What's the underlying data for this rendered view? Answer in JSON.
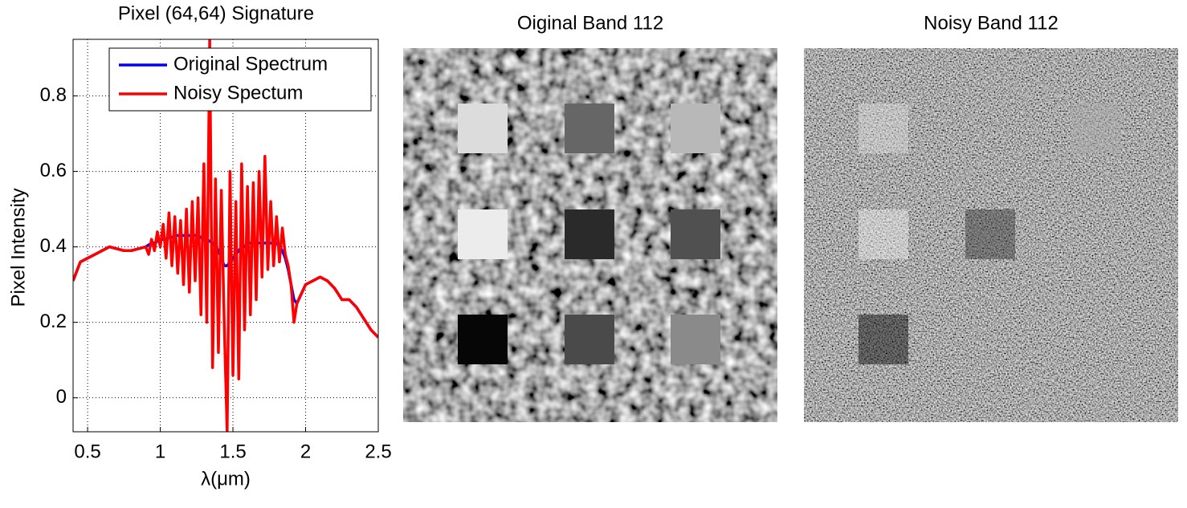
{
  "chart_data": [
    {
      "type": "line",
      "title": "Pixel (64,64) Signature",
      "xlabel": "λ(μm)",
      "ylabel": "Pixel Intensity",
      "x": [
        0.4,
        0.45,
        0.5,
        0.55,
        0.6,
        0.65,
        0.7,
        0.75,
        0.8,
        0.85,
        0.9,
        0.92,
        0.94,
        0.96,
        0.98,
        1.0,
        1.02,
        1.04,
        1.06,
        1.08,
        1.1,
        1.12,
        1.14,
        1.16,
        1.18,
        1.2,
        1.22,
        1.24,
        1.26,
        1.28,
        1.3,
        1.32,
        1.34,
        1.36,
        1.38,
        1.4,
        1.42,
        1.44,
        1.46,
        1.48,
        1.5,
        1.52,
        1.54,
        1.56,
        1.58,
        1.6,
        1.62,
        1.64,
        1.66,
        1.68,
        1.7,
        1.72,
        1.74,
        1.76,
        1.78,
        1.8,
        1.82,
        1.84,
        1.86,
        1.88,
        1.9,
        1.92,
        1.94,
        2.0,
        2.05,
        2.1,
        2.15,
        2.2,
        2.25,
        2.3,
        2.35,
        2.4,
        2.45,
        2.5
      ],
      "series": [
        {
          "name": "Original Spectrum",
          "color": "#0000ff",
          "values": [
            0.31,
            0.36,
            0.37,
            0.38,
            0.39,
            0.4,
            0.395,
            0.39,
            0.39,
            0.395,
            0.4,
            0.405,
            0.41,
            0.41,
            0.415,
            0.42,
            0.42,
            0.42,
            0.425,
            0.425,
            0.43,
            0.43,
            0.43,
            0.43,
            0.43,
            0.43,
            0.43,
            0.43,
            0.43,
            0.425,
            0.42,
            0.42,
            0.415,
            0.41,
            0.4,
            0.39,
            0.37,
            0.35,
            0.35,
            0.36,
            0.37,
            0.38,
            0.39,
            0.4,
            0.4,
            0.41,
            0.41,
            0.41,
            0.41,
            0.41,
            0.41,
            0.41,
            0.41,
            0.41,
            0.41,
            0.41,
            0.4,
            0.39,
            0.37,
            0.34,
            0.3,
            0.26,
            0.25,
            0.3,
            0.31,
            0.32,
            0.31,
            0.29,
            0.26,
            0.26,
            0.24,
            0.21,
            0.18,
            0.16
          ]
        },
        {
          "name": "Noisy Spectum",
          "color": "#ff0000",
          "values": [
            0.31,
            0.36,
            0.37,
            0.38,
            0.39,
            0.4,
            0.395,
            0.39,
            0.39,
            0.395,
            0.4,
            0.38,
            0.42,
            0.39,
            0.44,
            0.4,
            0.46,
            0.37,
            0.49,
            0.35,
            0.48,
            0.33,
            0.47,
            0.3,
            0.5,
            0.28,
            0.52,
            0.31,
            0.53,
            0.22,
            0.62,
            0.2,
            0.95,
            0.08,
            0.58,
            0.12,
            0.55,
            0.2,
            -0.09,
            0.6,
            0.06,
            0.52,
            0.05,
            0.62,
            0.18,
            0.56,
            0.22,
            0.57,
            0.26,
            0.6,
            0.32,
            0.64,
            0.34,
            0.52,
            0.35,
            0.48,
            0.36,
            0.45,
            0.38,
            0.35,
            0.3,
            0.2,
            0.25,
            0.3,
            0.31,
            0.32,
            0.31,
            0.29,
            0.26,
            0.26,
            0.24,
            0.21,
            0.18,
            0.16
          ]
        }
      ],
      "xlim": [
        0.4,
        2.5
      ],
      "ylim": [
        -0.09,
        0.95
      ],
      "xticks": [
        0.5,
        1,
        1.5,
        2,
        2.5
      ],
      "yticks": [
        0,
        0.2,
        0.4,
        0.6,
        0.8
      ],
      "grid": true,
      "legend": "top-right"
    },
    {
      "type": "image",
      "title": "Oiginal Band 112"
    },
    {
      "type": "image",
      "title": "Noisy Band 112"
    }
  ]
}
